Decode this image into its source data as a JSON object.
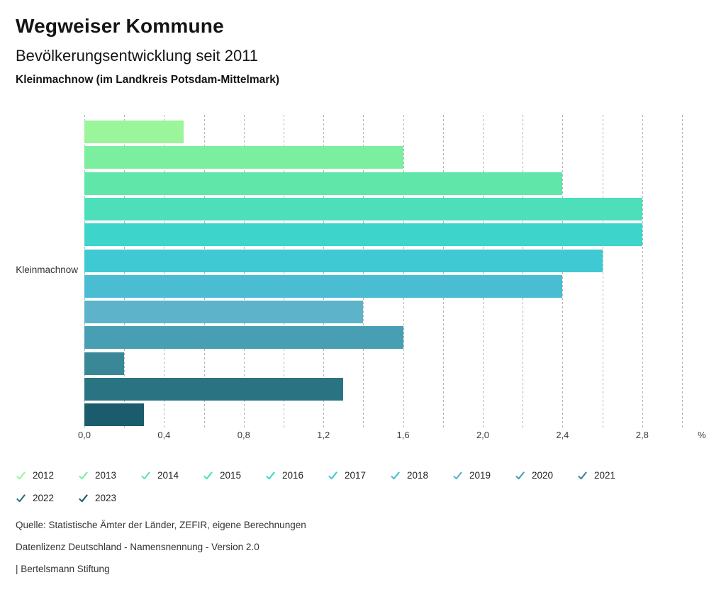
{
  "header": {
    "title": "Wegweiser Kommune",
    "subtitle": "Bevölkerungsentwicklung seit 2011",
    "location": "Kleinmachnow (im Landkreis Potsdam-Mittelmark)"
  },
  "chart_data": {
    "type": "bar",
    "orientation": "horizontal",
    "title": "Bevölkerungsentwicklung seit 2011",
    "group_label": "Kleinmachnow",
    "categories": [
      "2012",
      "2013",
      "2014",
      "2015",
      "2016",
      "2017",
      "2018",
      "2019",
      "2020",
      "2021",
      "2022",
      "2023"
    ],
    "values": [
      0.5,
      1.6,
      2.4,
      2.8,
      2.8,
      2.6,
      2.4,
      1.4,
      1.6,
      0.2,
      1.3,
      0.3
    ],
    "colors": [
      "#9af59b",
      "#7cee9f",
      "#60e6a9",
      "#4cdfba",
      "#3dd5cb",
      "#3fc9d3",
      "#4abdd3",
      "#5db3ca",
      "#489eb2",
      "#3a8798",
      "#2a7382",
      "#1a5c6c"
    ],
    "unit": "%",
    "xlim": [
      0,
      3.0
    ],
    "gridline_step": 0.2,
    "grid": true,
    "gridline_color": "#b3b3b3",
    "x_ticks": [
      {
        "value": 0.0,
        "label": "0,0"
      },
      {
        "value": 0.4,
        "label": "0,4"
      },
      {
        "value": 0.8,
        "label": "0,8"
      },
      {
        "value": 1.2,
        "label": "1,2"
      },
      {
        "value": 1.6,
        "label": "1,6"
      },
      {
        "value": 2.0,
        "label": "2,0"
      },
      {
        "value": 2.4,
        "label": "2,4"
      },
      {
        "value": 2.8,
        "label": "2,8"
      }
    ],
    "x_axis_unit_label": "%",
    "legend_position": "bottom"
  },
  "footer": {
    "line1": "Quelle: Statistische Ämter der Länder, ZEFIR, eigene Berechnungen",
    "line2": "Datenlizenz Deutschland - Namensnennung - Version 2.0",
    "line3": "| Bertelsmann Stiftung"
  }
}
